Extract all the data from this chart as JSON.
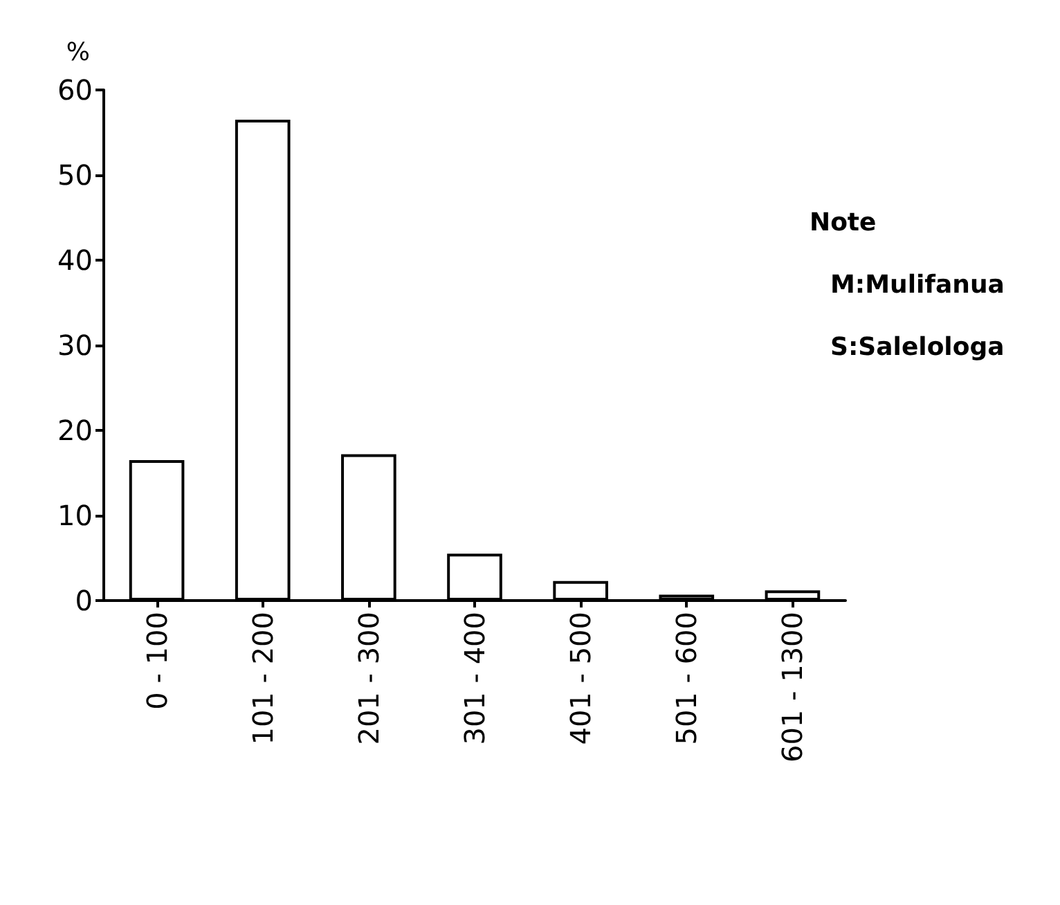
{
  "chart_data": {
    "type": "bar",
    "ylabel": "%",
    "categories": [
      "0 - 100",
      "101 - 200",
      "201 - 300",
      "301 - 400",
      "401 - 500",
      "501 - 600",
      "601 - 1300"
    ],
    "values": [
      16.5,
      56.5,
      17.2,
      5.5,
      2.3,
      0.7,
      1.2
    ],
    "color": "#ffffff",
    "ylim": [
      0,
      60
    ],
    "yticks": [
      0,
      10,
      20,
      30,
      40,
      50,
      60
    ],
    "grid": false,
    "annotations": [
      "Note",
      "M:Mulifanua",
      "S:Salelologa"
    ]
  }
}
